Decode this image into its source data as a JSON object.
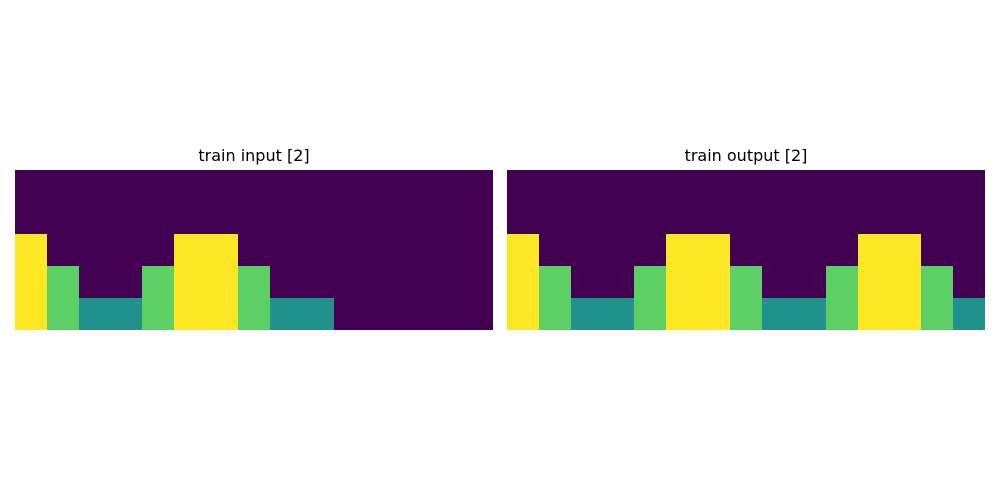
{
  "palette": [
    "#440154",
    "#21918c",
    "#5ccf65",
    "#fde725"
  ],
  "panels": [
    {
      "title": "train input [2]",
      "grid": [
        [
          0,
          0,
          0,
          0,
          0,
          0,
          0,
          0,
          0,
          0,
          0,
          0,
          0,
          0,
          0
        ],
        [
          0,
          0,
          0,
          0,
          0,
          0,
          0,
          0,
          0,
          0,
          0,
          0,
          0,
          0,
          0
        ],
        [
          3,
          0,
          0,
          0,
          0,
          3,
          3,
          0,
          0,
          0,
          0,
          0,
          0,
          0,
          0
        ],
        [
          3,
          2,
          0,
          0,
          2,
          3,
          3,
          2,
          0,
          0,
          0,
          0,
          0,
          0,
          0
        ],
        [
          3,
          2,
          1,
          1,
          2,
          3,
          3,
          2,
          1,
          1,
          0,
          0,
          0,
          0,
          0
        ]
      ]
    },
    {
      "title": "train output [2]",
      "grid": [
        [
          0,
          0,
          0,
          0,
          0,
          0,
          0,
          0,
          0,
          0,
          0,
          0,
          0,
          0,
          0
        ],
        [
          0,
          0,
          0,
          0,
          0,
          0,
          0,
          0,
          0,
          0,
          0,
          0,
          0,
          0,
          0
        ],
        [
          3,
          0,
          0,
          0,
          0,
          3,
          3,
          0,
          0,
          0,
          0,
          3,
          3,
          0,
          0
        ],
        [
          3,
          2,
          0,
          0,
          2,
          3,
          3,
          2,
          0,
          0,
          2,
          3,
          3,
          2,
          0
        ],
        [
          3,
          2,
          1,
          1,
          2,
          3,
          3,
          2,
          1,
          1,
          2,
          3,
          3,
          2,
          1
        ]
      ]
    }
  ]
}
